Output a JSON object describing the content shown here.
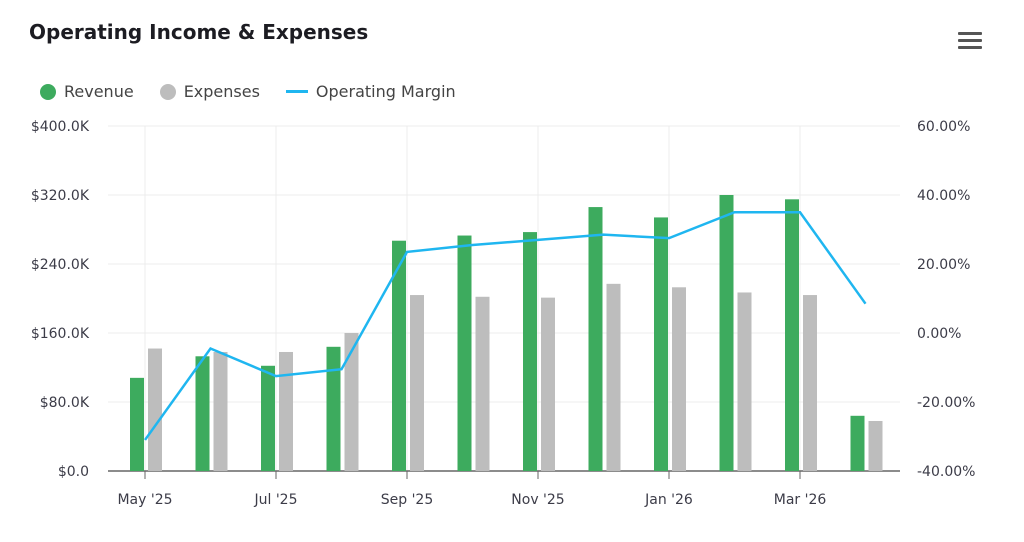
{
  "chart_data": {
    "type": "bar",
    "title": "Operating Income & Expenses",
    "categories": [
      "May '25",
      "Jun '25",
      "Jul '25",
      "Aug '25",
      "Sep '25",
      "Oct '25",
      "Nov '25",
      "Dec '25",
      "Jan '26",
      "Feb '26",
      "Mar '26",
      "Apr '26"
    ],
    "x_tick_labels": [
      "May '25",
      "Jul '25",
      "Sep '25",
      "Nov '25",
      "Jan '26",
      "Mar '26"
    ],
    "series": [
      {
        "name": "Revenue",
        "type": "bar",
        "axis": "left",
        "color": "#3dab5e",
        "values": [
          108,
          133,
          122,
          144,
          267,
          273,
          277,
          306,
          294,
          320,
          315,
          64
        ]
      },
      {
        "name": "Expenses",
        "type": "bar",
        "axis": "left",
        "color": "#bdbdbd",
        "values": [
          142,
          138,
          138,
          160,
          204,
          202,
          201,
          217,
          213,
          207,
          204,
          58
        ]
      },
      {
        "name": "Operating Margin",
        "type": "line",
        "axis": "right",
        "color": "#1fb6f0",
        "values": [
          -31,
          -4.5,
          -12.5,
          -10.5,
          23.5,
          25.5,
          27,
          28.5,
          27.5,
          35,
          35,
          8.5
        ]
      }
    ],
    "left_axis": {
      "unit": "$K",
      "ylim": [
        0,
        400
      ],
      "ticks": [
        "$0.0",
        "$80.0K",
        "$160.0K",
        "$240.0K",
        "$320.0K",
        "$400.0K"
      ]
    },
    "right_axis": {
      "unit": "%",
      "ylim": [
        -40,
        60
      ],
      "ticks": [
        "-40.00%",
        "-20.00%",
        "0.00%",
        "20.00%",
        "40.00%",
        "60.00%"
      ]
    },
    "grid": true,
    "legend": "top-left"
  }
}
